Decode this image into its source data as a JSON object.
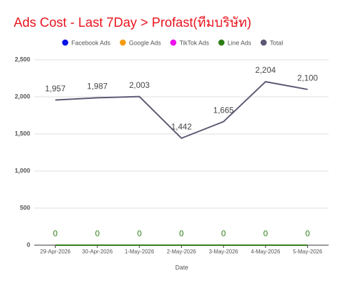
{
  "chart_data": {
    "type": "line",
    "title": "Ads Cost - Last 7Day > Profast(ทีมบริษัท)",
    "x_label": "Date",
    "categories": [
      "29-Apr-2026",
      "30-Apr-2026",
      "1-May-2026",
      "2-May-2026",
      "3-May-2026",
      "4-May-2026",
      "5-May-2026"
    ],
    "series": [
      {
        "name": "Facebook Ads",
        "color": "#0a14e6",
        "values": [
          0,
          0,
          0,
          0,
          0,
          0,
          0
        ]
      },
      {
        "name": "Google Ads",
        "color": "#f39c12",
        "values": [
          0,
          0,
          0,
          0,
          0,
          0,
          0
        ]
      },
      {
        "name": "TikTok Ads",
        "color": "#ee11ee",
        "values": [
          0,
          0,
          0,
          0,
          0,
          0,
          0
        ]
      },
      {
        "name": "Line Ads",
        "color": "#2e7d16",
        "values": [
          0,
          0,
          0,
          0,
          0,
          0,
          0
        ],
        "data_labels": true
      },
      {
        "name": "Total",
        "color": "#5a5872",
        "values": [
          1957,
          1987,
          2003,
          1442,
          1665,
          2204,
          2100
        ],
        "value_labels": [
          "1,957",
          "1,987",
          "2,003",
          "1,442",
          "1,665",
          "2,204",
          "2,100"
        ],
        "data_labels": true
      }
    ],
    "ylim": [
      0,
      2500
    ],
    "yticks": [
      0,
      {
        "value": 500,
        "label": "500"
      },
      {
        "value": 1000,
        "label": "1,000"
      },
      {
        "value": 1500,
        "label": "1,500"
      },
      {
        "value": 2000,
        "label": "2,000"
      },
      {
        "value": 2500,
        "label": "2,500"
      }
    ],
    "grid": true,
    "legend": "top",
    "title_color": "#e8141e"
  }
}
